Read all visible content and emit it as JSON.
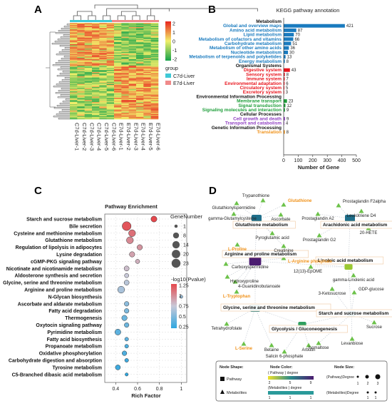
{
  "panels": {
    "A": "A",
    "B": "B",
    "C": "C",
    "D": "D"
  },
  "panel_a": {
    "colorbar_ticks": [
      "2",
      "1",
      "0",
      "-1",
      "-2"
    ],
    "legend_title": "group",
    "groups": [
      {
        "name": "C7d-Liver",
        "color": "#3fc9d6"
      },
      {
        "name": "E7d-Liver",
        "color": "#f08a8a"
      }
    ],
    "samples": [
      "C7d-Liver-1",
      "C7d-Liver-2",
      "C7d-Liver-3",
      "C7d-Liver-4",
      "C7d-Liver-5",
      "C7d-Liver-6",
      "E7d-Liver-1",
      "E7d-Liver-2",
      "E7d-Liver-3",
      "E7d-Liver-4",
      "E7d-Liver-5",
      "E7d-Liver-6"
    ]
  },
  "chart_data": [
    {
      "type": "bar",
      "panel": "B",
      "title": "KEGG pathway annotation",
      "xlabel": "Number of Gene",
      "xlim": [
        0,
        500
      ],
      "xticks": [
        "0",
        "100",
        "200",
        "300",
        "400",
        "500"
      ],
      "groups": [
        {
          "name": "Metabolism",
          "color": "#1a7bbf",
          "categories": [
            "Global and overview maps",
            "Amino acid metabolism",
            "Lipid metabolism",
            "Metabolism of cofactors and vitamins",
            "Carbohydrate metabolism",
            "Metabolism of other amino acids",
            "Nucleotide metabolism",
            "Metabolism of terpenoids and polyketides",
            "Energy metabolism"
          ],
          "values": [
            421,
            87,
            70,
            66,
            51,
            36,
            30,
            13,
            8
          ]
        },
        {
          "name": "Organismal Systems",
          "color": "#e8141c",
          "categories": [
            "Digestive system",
            "Sensory system",
            "Immune system",
            "Environmental adaptation",
            "Circulatory system",
            "Excretory system"
          ],
          "values": [
            43,
            8,
            7,
            6,
            5,
            3
          ]
        },
        {
          "name": "Environmental Information Processing",
          "color": "#1e9e3a",
          "categories": [
            "Membrane transport",
            "Signal transduction",
            "Signaling molecules and interaction"
          ],
          "values": [
            23,
            12,
            9
          ]
        },
        {
          "name": "Cellular Processes",
          "color": "#8f3fc2",
          "categories": [
            "Cell growth and death",
            "Transport and catabolism"
          ],
          "values": [
            9,
            4
          ]
        },
        {
          "name": "Genetic Information Processing",
          "color": "#f0921a",
          "categories": [
            "Translation"
          ],
          "values": [
            8
          ]
        }
      ]
    },
    {
      "type": "scatter",
      "panel": "C",
      "title": "Pathway Enrichment",
      "xlabel": "Rich Factor",
      "xlim": [
        0.3,
        1.05
      ],
      "xticks": [
        "0.4",
        "0.6",
        "0.8",
        "1"
      ],
      "categories": [
        "Starch and sucrose metabolism",
        "Bile secretion",
        "Cysteine and methionine metabolism",
        "Glutathione metabolism",
        "Regulation of lipolysis in adipocytes",
        "Lysine degradation",
        "cGMP-PKG signaling pathway",
        "Nicotinate and nicotinamide metabolism",
        "Aldosterone synthesis and secretion",
        "Glycine, serine and threonine metabolism",
        "Arginine and proline metabolism",
        "N-Glycan biosynthesis",
        "Ascorbate and aldarate metabolism",
        "Fatty acid degradation",
        "Thermogenesis",
        "Oxytocin signaling pathway",
        "Pyrimidine metabolism",
        "Fatty acid biosynthesis",
        "Propanoate metabolism",
        "Oxidative phosphorylation",
        "Carbohydrate digestion and absorption",
        "Tyrosine metabolism",
        "C5-Branched dibasic acid metabolism"
      ],
      "rich_factor": [
        0.75,
        0.5,
        0.55,
        0.53,
        0.62,
        0.55,
        0.6,
        0.5,
        0.5,
        0.5,
        0.45,
        1.0,
        0.5,
        0.5,
        0.48,
        0.5,
        0.42,
        0.5,
        0.5,
        0.48,
        0.5,
        0.42,
        0.5
      ],
      "gene_number": [
        8,
        23,
        12,
        12,
        6,
        6,
        3,
        5,
        3,
        5,
        12,
        1,
        4,
        4,
        6,
        4,
        8,
        2,
        2,
        4,
        2,
        5,
        1
      ],
      "neg_log10_p": [
        1.25,
        1.2,
        1.1,
        1.0,
        0.95,
        0.9,
        0.85,
        0.8,
        0.75,
        0.7,
        0.65,
        0.6,
        0.55,
        0.5,
        0.45,
        0.45,
        0.4,
        0.4,
        0.35,
        0.35,
        0.3,
        0.3,
        0.25
      ],
      "size_legend_title": "GeneNumber",
      "size_legend": [
        "1",
        "8",
        "14",
        "20",
        "23"
      ],
      "color_legend_title": "-log10(Pvalue)",
      "color_legend": [
        "1.25",
        "1",
        "0.75",
        "0.5",
        "0.25"
      ]
    }
  ],
  "panel_d": {
    "pathways": [
      "Glutathione metabolism",
      "Arachidonic acid metabolism",
      "Arginine and proline metabolism",
      "Linoleic acid metabolism",
      "Glycine, serine and threonine metabolism",
      "Starch and sucrose metabolism",
      "Glycolysis / Gluconeogenesis"
    ],
    "metabolites": [
      "Trypanothione",
      "Glutathione",
      "Glutathionylspermidine",
      "Prostaglandin F2alpha",
      "Leukotriene D4",
      "gamma-Glutamylcysteine",
      "Ascorbate",
      "Prostaglandin A2",
      "Pyroglutamic acid",
      "Prostaglandin G2",
      "20-HETE",
      "L-Proline",
      "Creatinine",
      "Carboxyspermidine",
      "L-Arginine phosphate",
      "12(13)-EpOME",
      "gamma-Linolenic acid",
      "Hydroxyproline",
      "4-Guanidinobutanoate",
      "L-Tryptophan",
      "3-Ketosucrose",
      "GDP-glucose",
      "Tetrahydrofolate",
      "Sucrose",
      "Isomaltose",
      "Levanbiose",
      "L-Serine",
      "Betaine",
      "Salicin 6-phosphate",
      "Arbutin"
    ],
    "legend": {
      "shape_title": "Node Shape:",
      "color_title": "Node Color:",
      "size_title": "Node Size:",
      "pathway": "Pathway",
      "metabolites": "Metabolites",
      "pathway_degree": "( Pathway ) degree",
      "metabolite_degree": "(Metabolites ) degree",
      "size_pathway": "(Pathway)Degree",
      "size_metabolite": "(Metabolites)Degree",
      "pw_ticks": [
        "2",
        "5",
        "9"
      ],
      "met_ticks": [
        "1",
        "1",
        "1"
      ],
      "size_ticks": [
        "1",
        "2",
        "3"
      ],
      "size_met_ticks": [
        "1",
        "1"
      ]
    }
  }
}
